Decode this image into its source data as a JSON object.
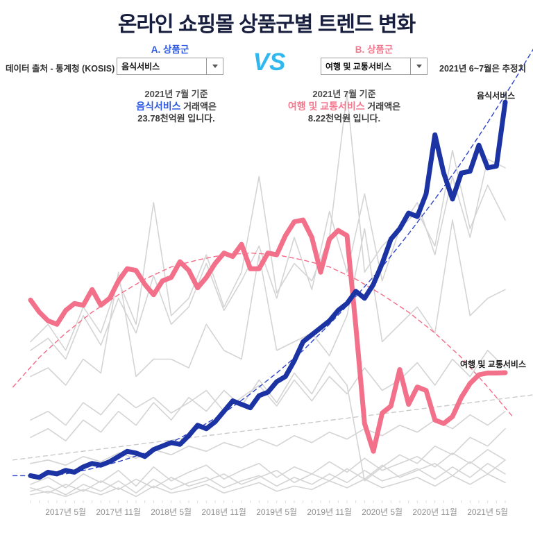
{
  "page": {
    "title": "온라인 쇼핑몰 상품군별 트렌드 변화"
  },
  "header": {
    "source_note": "데이터 출처 - 통계청 (KOSIS)",
    "estimate_note": "2021년 6~7월은 추정치",
    "vs_label": "VS",
    "selector_a": {
      "label": "A. 상품군",
      "value": "음식서비스",
      "color": "#2d5be3"
    },
    "selector_b": {
      "label": "B. 상품군",
      "value": "여행 및 교통서비스",
      "color": "#f4798f"
    }
  },
  "annotations": {
    "a": {
      "line1": "2021년 7월 기준",
      "name": "음식서비스",
      "after_name": " 거래액은",
      "line3": "23.78천억원 입니다."
    },
    "b": {
      "line1": "2021년 7월 기준",
      "name": "여행 및 교통서비스",
      "after_name": " 거래액은",
      "line3": "8.22천억원 입니다."
    }
  },
  "colors": {
    "title": "#181f3e",
    "vs": "#2fb7ee",
    "label_a": "#2d5be3",
    "label_b": "#f4798f",
    "series_a": "#1c33a3",
    "series_b": "#f2708a",
    "trend_a": "#2e44c8",
    "trend_b": "#f56a86",
    "trend_gray": "#c9c9c9",
    "background_lines": "#d4d4d4",
    "axis_text": "#8f8f8f"
  },
  "chart_data": {
    "type": "line",
    "x_unit": "month",
    "x_range": [
      "2017-01",
      "2021-07"
    ],
    "months_total": 55,
    "y_unit": "천억원",
    "ylim": [
      0,
      25.1
    ],
    "grid": false,
    "legend_position": "end-of-line-labels",
    "x_ticks": [
      {
        "i": 4,
        "label": "2017년 5월"
      },
      {
        "i": 10,
        "label": "2017년 11월"
      },
      {
        "i": 16,
        "label": "2018년 5월"
      },
      {
        "i": 22,
        "label": "2018년 11월"
      },
      {
        "i": 28,
        "label": "2019년 5월"
      },
      {
        "i": 34,
        "label": "2019년 11월"
      },
      {
        "i": 40,
        "label": "2020년 5월"
      },
      {
        "i": 46,
        "label": "2020년 11월"
      },
      {
        "i": 52,
        "label": "2021년 5월"
      }
    ],
    "series": [
      {
        "name": "음식서비스",
        "color": "#1c33a3",
        "width": 7,
        "values": [
          2.3,
          2.2,
          2.5,
          2.4,
          2.6,
          2.5,
          2.8,
          3.0,
          2.9,
          3.1,
          3.4,
          3.7,
          3.6,
          3.4,
          3.8,
          4.0,
          4.2,
          4.1,
          4.6,
          5.2,
          5.0,
          5.4,
          6.0,
          6.6,
          6.4,
          6.2,
          6.9,
          7.1,
          7.7,
          8.0,
          8.9,
          10.0,
          10.4,
          10.8,
          11.2,
          11.8,
          12.2,
          12.9,
          12.5,
          13.3,
          14.5,
          15.9,
          16.5,
          17.4,
          17.2,
          18.5,
          21.9,
          19.7,
          18.2,
          19.7,
          19.8,
          21.3,
          20.0,
          20.1,
          23.78
        ]
      },
      {
        "name": "여행 및 교통서비스",
        "color": "#f2708a",
        "width": 7,
        "values": [
          12.4,
          11.7,
          11.2,
          11.0,
          11.8,
          12.2,
          12.1,
          13.0,
          12.1,
          12.5,
          13.5,
          14.2,
          14.1,
          13.3,
          12.7,
          13.5,
          13.7,
          14.6,
          14.1,
          13.1,
          13.7,
          14.5,
          15.1,
          14.9,
          15.6,
          14.2,
          14.2,
          15.1,
          15.0,
          16.1,
          16.9,
          17.0,
          16.0,
          14.0,
          15.9,
          16.4,
          16.1,
          10.9,
          5.3,
          3.7,
          5.9,
          6.3,
          8.4,
          6.4,
          7.4,
          7.2,
          5.5,
          5.3,
          5.7,
          6.8,
          7.6,
          8.1,
          8.2,
          8.2,
          8.22
        ]
      }
    ],
    "background_series": [
      {
        "name": "",
        "color": "#d4d4d4",
        "i_step": 2,
        "values": [
          9.5,
          10.2,
          9.0,
          11.5,
          9.8,
          12.5,
          10.5,
          13.8,
          11.0,
          12.0,
          14.5,
          11.8,
          13.5,
          15.5,
          12.5,
          16.0,
          13.0,
          17.5,
          14.0,
          18.5,
          13.5,
          16.5,
          18.0,
          15.0,
          19.5,
          16.0,
          20.5,
          20.0
        ]
      },
      {
        "name": "",
        "color": "#d4d4d4",
        "i_step": 2,
        "values": [
          8.0,
          8.5,
          7.5,
          9.0,
          8.2,
          14.0,
          8.0,
          9.0,
          9.0,
          8.5,
          11.0,
          9.5,
          9.0,
          15.0,
          9.5,
          10.0,
          10.5,
          9.2,
          11.5,
          16.5,
          10.0,
          11.0,
          12.0,
          10.5,
          17.0,
          11.5,
          12.5,
          13.0
        ]
      },
      {
        "name": "",
        "color": "#d4d4d4",
        "i_step": 2,
        "values": [
          5.5,
          6.0,
          5.2,
          6.5,
          5.8,
          7.0,
          6.2,
          6.8,
          5.9,
          6.5,
          7.2,
          6.0,
          6.8,
          7.5,
          6.3,
          7.8,
          6.6,
          8.0,
          7.0,
          8.5,
          7.2,
          7.8,
          8.8,
          7.5,
          9.0,
          8.0,
          9.5,
          8.5
        ]
      },
      {
        "name": "",
        "color": "#d4d4d4",
        "i_step": 2,
        "values": [
          4.5,
          5.0,
          4.3,
          5.5,
          4.8,
          6.0,
          5.2,
          6.5,
          5.5,
          6.8,
          6.0,
          7.2,
          6.3,
          7.8,
          6.5,
          8.2,
          7.0,
          8.8,
          7.5,
          2.0,
          2.8,
          3.5,
          3.0,
          4.0,
          3.5,
          4.5,
          4.0,
          5.0
        ]
      },
      {
        "name": "",
        "color": "#d4d4d4",
        "i_step": 2,
        "values": [
          3.0,
          3.2,
          2.9,
          3.4,
          3.1,
          3.6,
          3.3,
          3.8,
          3.5,
          4.0,
          3.7,
          4.2,
          3.9,
          4.4,
          4.0,
          4.6,
          4.2,
          4.8,
          4.4,
          5.0,
          4.6,
          5.2,
          4.8,
          5.5,
          5.0,
          5.8,
          5.2,
          6.0
        ]
      },
      {
        "name": "",
        "color": "#d4d4d4",
        "i_step": 2,
        "values": [
          1.8,
          2.2,
          1.6,
          2.4,
          1.9,
          2.6,
          1.7,
          2.8,
          2.0,
          2.5,
          2.9,
          2.1,
          2.6,
          3.0,
          2.2,
          2.8,
          2.4,
          3.1,
          2.5,
          3.3,
          2.6,
          3.0,
          3.4,
          2.8,
          3.6,
          3.0,
          3.8,
          3.2
        ]
      },
      {
        "name": "",
        "color": "#d4d4d4",
        "i_step": 2,
        "values": [
          1.4,
          1.7,
          1.2,
          1.8,
          1.4,
          2.0,
          1.3,
          2.1,
          1.5,
          1.9,
          2.2,
          1.6,
          2.0,
          2.3,
          1.7,
          2.2,
          1.8,
          2.4,
          1.9,
          2.6,
          2.0,
          2.3,
          2.7,
          2.1,
          2.8,
          2.2,
          3.0,
          2.4
        ]
      },
      {
        "name": "",
        "color": "#d4d4d4",
        "i_step": 2,
        "values": [
          1.2,
          1.4,
          1.1,
          1.5,
          1.2,
          1.6,
          1.1,
          1.7,
          1.3,
          1.5,
          1.8,
          1.3,
          1.6,
          1.9,
          1.4,
          1.7,
          1.5,
          2.0,
          1.6,
          2.1,
          1.6,
          1.9,
          2.2,
          1.7,
          2.3,
          1.8,
          2.4,
          1.9
        ]
      },
      {
        "name": "",
        "color": "#d4d4d4",
        "i_step": 2,
        "values": [
          1.6,
          1.3,
          1.8,
          1.4,
          2.0,
          1.5,
          2.1,
          1.6,
          2.2,
          1.7,
          2.0,
          2.4,
          1.8,
          2.2,
          2.6,
          1.9,
          2.4,
          2.0,
          2.7,
          2.1,
          2.9,
          2.2,
          2.6,
          3.0,
          2.3,
          3.1,
          2.4,
          3.2
        ]
      },
      {
        "name": "",
        "color": "#d4d4d4",
        "i_step": 2,
        "values": [
          10.0,
          11.0,
          9.5,
          12.0,
          10.5,
          13.5,
          11.0,
          18.0,
          11.5,
          12.5,
          15.0,
          12.0,
          14.0,
          19.5,
          12.8,
          14.5,
          13.5,
          16.0,
          24.3,
          14.0,
          15.5,
          16.5,
          17.5,
          15.5,
          21.0,
          16.5,
          19.0,
          17.0
        ]
      }
    ],
    "trendlines": [
      {
        "for": "background",
        "color": "#c9c9c9",
        "i_start": -2,
        "i_step": 60,
        "values": [
          3.2,
          7.0
        ]
      },
      {
        "for": "여행 및 교통서비스",
        "color": "#f56a86",
        "i_start": -2,
        "i_step": 3,
        "values": [
          7.4,
          9.1,
          10.5,
          11.7,
          12.7,
          13.6,
          14.3,
          14.7,
          15.0,
          15.1,
          15.0,
          14.7,
          14.3,
          13.6,
          12.7,
          11.7,
          10.5,
          9.1,
          7.4,
          5.6
        ]
      },
      {
        "for": "음식서비스",
        "color": "#2e44c8",
        "i_start": -2,
        "i_step": 3,
        "values": [
          2.3,
          2.3,
          2.4,
          2.7,
          3.1,
          3.6,
          4.2,
          5.0,
          5.9,
          7.0,
          8.2,
          9.5,
          11.0,
          12.6,
          14.3,
          16.2,
          18.2,
          20.3,
          22.6,
          25.0,
          27.5
        ]
      }
    ]
  }
}
